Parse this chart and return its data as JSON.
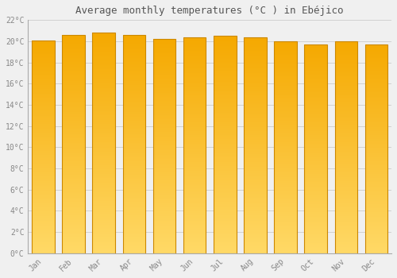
{
  "title": "Average monthly temperatures (°C ) in Ebéjico",
  "months": [
    "Jan",
    "Feb",
    "Mar",
    "Apr",
    "May",
    "Jun",
    "Jul",
    "Aug",
    "Sep",
    "Oct",
    "Nov",
    "Dec"
  ],
  "values": [
    20.1,
    20.6,
    20.8,
    20.6,
    20.2,
    20.4,
    20.5,
    20.4,
    20.0,
    19.7,
    20.0,
    19.7
  ],
  "bar_color_top": "#F5A800",
  "bar_color_bottom": "#FFD966",
  "bar_edge_color": "#CC8800",
  "ylim": [
    0,
    22
  ],
  "yticks": [
    0,
    2,
    4,
    6,
    8,
    10,
    12,
    14,
    16,
    18,
    20,
    22
  ],
  "ytick_labels": [
    "0°C",
    "2°C",
    "4°C",
    "6°C",
    "8°C",
    "10°C",
    "12°C",
    "14°C",
    "16°C",
    "18°C",
    "20°C",
    "22°C"
  ],
  "background_color": "#f0f0f0",
  "grid_color": "#cccccc",
  "title_fontsize": 9,
  "tick_fontsize": 7,
  "bar_width": 0.75
}
